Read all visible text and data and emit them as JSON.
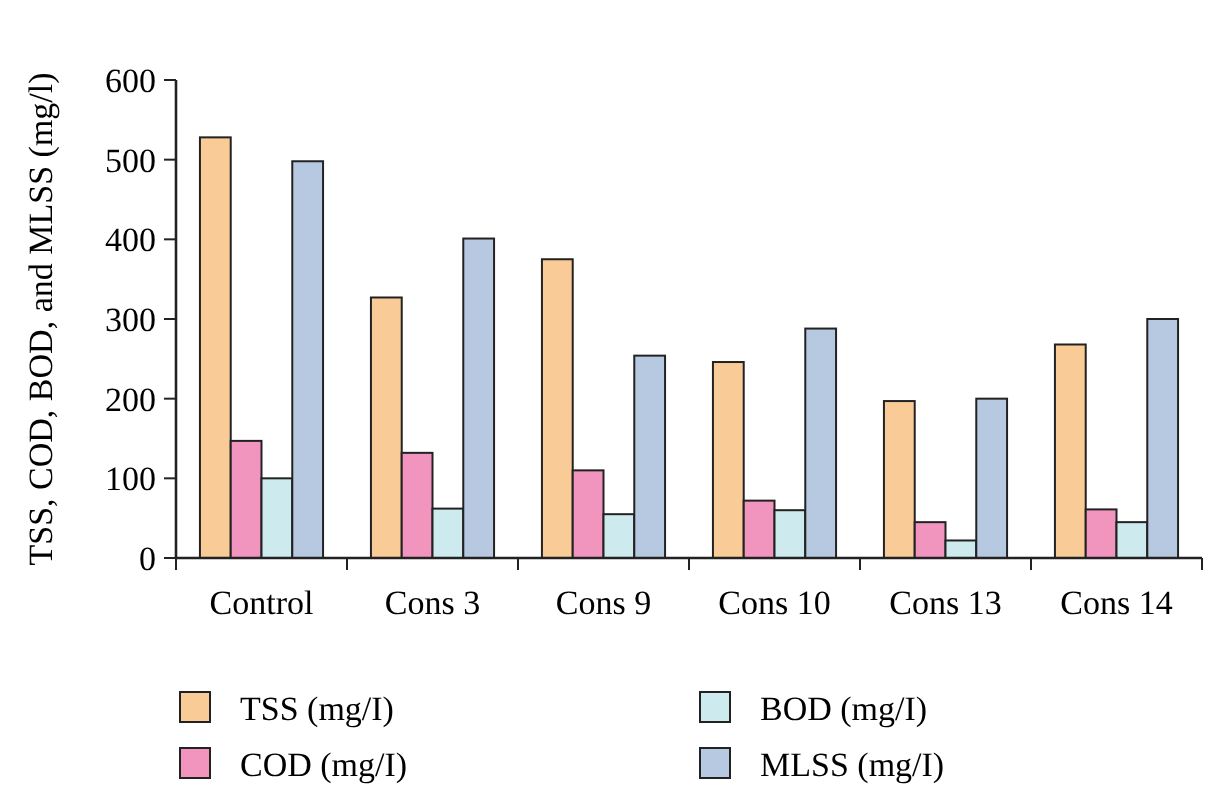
{
  "chart_data": {
    "type": "bar",
    "ylabel": "TSS, COD, BOD, and MLSS (mg/l)",
    "categories": [
      "Control",
      "Cons 3",
      "Cons 9",
      "Cons 10",
      "Cons 13",
      "Cons 14"
    ],
    "series": [
      {
        "name": "TSS (mg/I)",
        "color": "#f9cb97",
        "values": [
          528,
          327,
          375,
          246,
          197,
          268
        ]
      },
      {
        "name": "COD (mg/I)",
        "color": "#f194be",
        "values": [
          147,
          132,
          110,
          72,
          45,
          61
        ]
      },
      {
        "name": "BOD (mg/I)",
        "color": "#cdeaee",
        "values": [
          100,
          62,
          55,
          60,
          22,
          45
        ]
      },
      {
        "name": "MLSS (mg/I)",
        "color": "#b6c9e1",
        "values": [
          498,
          401,
          254,
          288,
          200,
          300
        ]
      }
    ],
    "ylim": [
      0,
      600
    ],
    "yticks": [
      0,
      100,
      200,
      300,
      400,
      500,
      600
    ],
    "grid": false,
    "legend": "bottom"
  }
}
